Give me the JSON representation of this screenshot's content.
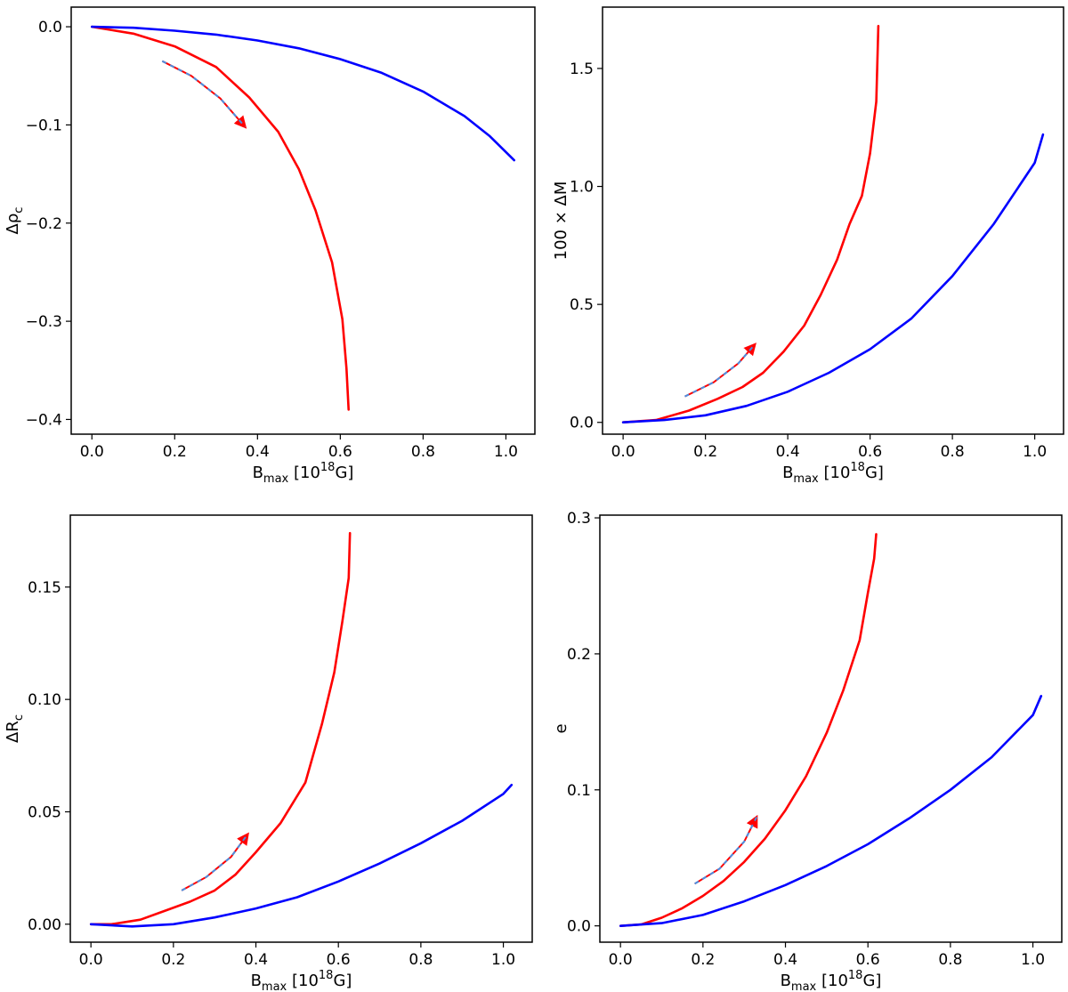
{
  "chart_data": [
    {
      "type": "line",
      "xlabel": {
        "main": "B",
        "sub": "max",
        "rest": " [10",
        "sup": "18",
        "end": "G]"
      },
      "ylabel": {
        "main": "Δρ",
        "sub": "c"
      },
      "xlim": [
        -0.05,
        1.07
      ],
      "ylim": [
        -0.415,
        0.02
      ],
      "xticks": [
        0.0,
        0.2,
        0.4,
        0.6,
        0.8,
        1.0
      ],
      "xtick_labels": [
        "0.0",
        "0.2",
        "0.4",
        "0.6",
        "0.8",
        "1.0"
      ],
      "yticks": [
        0.0,
        -0.1,
        -0.2,
        -0.3,
        -0.4
      ],
      "ytick_labels": [
        "0.0",
        "−0.1",
        "−0.2",
        "−0.3",
        "−0.4"
      ],
      "series": [
        {
          "color": "#ff0000",
          "x": [
            0.0,
            0.1,
            0.2,
            0.3,
            0.38,
            0.45,
            0.5,
            0.54,
            0.58,
            0.605,
            0.615,
            0.62
          ],
          "y": [
            0.0,
            -0.007,
            -0.02,
            -0.041,
            -0.072,
            -0.107,
            -0.145,
            -0.187,
            -0.24,
            -0.298,
            -0.348,
            -0.39
          ]
        },
        {
          "color": "#0000ff",
          "x": [
            0.0,
            0.1,
            0.2,
            0.3,
            0.4,
            0.5,
            0.6,
            0.7,
            0.8,
            0.9,
            0.96,
            1.02
          ],
          "y": [
            0.0,
            -0.001,
            -0.004,
            -0.008,
            -0.014,
            -0.022,
            -0.033,
            -0.047,
            -0.066,
            -0.091,
            -0.111,
            -0.136
          ]
        }
      ],
      "trend_arrow": {
        "color": "#ff0000",
        "dash_color": "#4a90e2",
        "x": [
          0.17,
          0.24,
          0.31,
          0.37
        ],
        "y": [
          -0.035,
          -0.05,
          -0.073,
          -0.102
        ]
      }
    },
    {
      "type": "line",
      "xlabel": {
        "main": "B",
        "sub": "max",
        "rest": " [10",
        "sup": "18",
        "end": "G]"
      },
      "ylabel": {
        "main": "100 × ΔM",
        "sub": ""
      },
      "xlim": [
        -0.05,
        1.07
      ],
      "ylim": [
        -0.05,
        1.76
      ],
      "xticks": [
        0.0,
        0.2,
        0.4,
        0.6,
        0.8,
        1.0
      ],
      "xtick_labels": [
        "0.0",
        "0.2",
        "0.4",
        "0.6",
        "0.8",
        "1.0"
      ],
      "yticks": [
        0.0,
        0.5,
        1.0,
        1.5
      ],
      "ytick_labels": [
        "0.0",
        "0.5",
        "1.0",
        "1.5"
      ],
      "series": [
        {
          "color": "#ff0000",
          "x": [
            0.0,
            0.08,
            0.16,
            0.23,
            0.29,
            0.34,
            0.39,
            0.44,
            0.48,
            0.52,
            0.55,
            0.58,
            0.6,
            0.615,
            0.62
          ],
          "y": [
            0.0,
            0.01,
            0.05,
            0.1,
            0.15,
            0.21,
            0.3,
            0.41,
            0.54,
            0.69,
            0.84,
            0.96,
            1.14,
            1.36,
            1.68
          ]
        },
        {
          "color": "#0000ff",
          "x": [
            0.0,
            0.1,
            0.2,
            0.3,
            0.4,
            0.5,
            0.6,
            0.7,
            0.8,
            0.9,
            1.0,
            1.02
          ],
          "y": [
            0.0,
            0.01,
            0.03,
            0.07,
            0.13,
            0.21,
            0.31,
            0.44,
            0.62,
            0.84,
            1.1,
            1.22
          ]
        }
      ],
      "trend_arrow": {
        "color": "#ff0000",
        "dash_color": "#4a90e2",
        "x": [
          0.15,
          0.22,
          0.28,
          0.32
        ],
        "y": [
          0.11,
          0.17,
          0.25,
          0.33
        ]
      }
    },
    {
      "type": "line",
      "xlabel": {
        "main": "B",
        "sub": "max",
        "rest": " [10",
        "sup": "18",
        "end": "G]"
      },
      "ylabel": {
        "main": "ΔR",
        "sub": "c"
      },
      "xlim": [
        -0.05,
        1.07
      ],
      "ylim": [
        -0.008,
        0.182
      ],
      "xticks": [
        0.0,
        0.2,
        0.4,
        0.6,
        0.8,
        1.0
      ],
      "xtick_labels": [
        "0.0",
        "0.2",
        "0.4",
        "0.6",
        "0.8",
        "1.0"
      ],
      "yticks": [
        0.0,
        0.05,
        0.1,
        0.15
      ],
      "ytick_labels": [
        "0.00",
        "0.05",
        "0.10",
        "0.15"
      ],
      "series": [
        {
          "color": "#ff0000",
          "x": [
            0.0,
            0.05,
            0.12,
            0.18,
            0.24,
            0.3,
            0.35,
            0.4,
            0.46,
            0.52,
            0.56,
            0.59,
            0.61,
            0.625,
            0.628
          ],
          "y": [
            0.0,
            0.0,
            0.002,
            0.006,
            0.01,
            0.015,
            0.022,
            0.032,
            0.045,
            0.063,
            0.089,
            0.112,
            0.135,
            0.154,
            0.174
          ]
        },
        {
          "color": "#0000ff",
          "x": [
            0.0,
            0.1,
            0.2,
            0.3,
            0.4,
            0.5,
            0.6,
            0.7,
            0.8,
            0.9,
            1.0,
            1.02
          ],
          "y": [
            0.0,
            -0.001,
            0.0,
            0.003,
            0.007,
            0.012,
            0.019,
            0.027,
            0.036,
            0.046,
            0.058,
            0.062
          ]
        }
      ],
      "trend_arrow": {
        "color": "#ff0000",
        "dash_color": "#4a90e2",
        "x": [
          0.22,
          0.28,
          0.34,
          0.38
        ],
        "y": [
          0.015,
          0.021,
          0.03,
          0.04
        ]
      }
    },
    {
      "type": "line",
      "xlabel": {
        "main": "B",
        "sub": "max",
        "rest": " [10",
        "sup": "18",
        "end": "G]"
      },
      "ylabel": {
        "main": "e",
        "sub": ""
      },
      "xlim": [
        -0.05,
        1.07
      ],
      "ylim": [
        -0.012,
        0.302
      ],
      "xticks": [
        0.0,
        0.2,
        0.4,
        0.6,
        0.8,
        1.0
      ],
      "xtick_labels": [
        "0.0",
        "0.2",
        "0.4",
        "0.6",
        "0.8",
        "1.0"
      ],
      "yticks": [
        0.0,
        0.1,
        0.2,
        0.3
      ],
      "ytick_labels": [
        "0.0",
        "0.1",
        "0.2",
        "0.3"
      ],
      "series": [
        {
          "color": "#ff0000",
          "x": [
            0.0,
            0.05,
            0.1,
            0.15,
            0.2,
            0.25,
            0.3,
            0.35,
            0.4,
            0.45,
            0.5,
            0.54,
            0.58,
            0.6,
            0.615,
            0.62
          ],
          "y": [
            0.0,
            0.001,
            0.006,
            0.013,
            0.022,
            0.033,
            0.047,
            0.064,
            0.085,
            0.11,
            0.142,
            0.173,
            0.21,
            0.245,
            0.27,
            0.288
          ]
        },
        {
          "color": "#0000ff",
          "x": [
            0.0,
            0.1,
            0.2,
            0.3,
            0.4,
            0.5,
            0.6,
            0.7,
            0.8,
            0.9,
            1.0,
            1.02
          ],
          "y": [
            0.0,
            0.002,
            0.008,
            0.018,
            0.03,
            0.044,
            0.06,
            0.079,
            0.1,
            0.124,
            0.155,
            0.169
          ]
        }
      ],
      "trend_arrow": {
        "color": "#ff0000",
        "dash_color": "#4a90e2",
        "x": [
          0.18,
          0.24,
          0.3,
          0.33
        ],
        "y": [
          0.031,
          0.042,
          0.062,
          0.08
        ]
      }
    }
  ]
}
